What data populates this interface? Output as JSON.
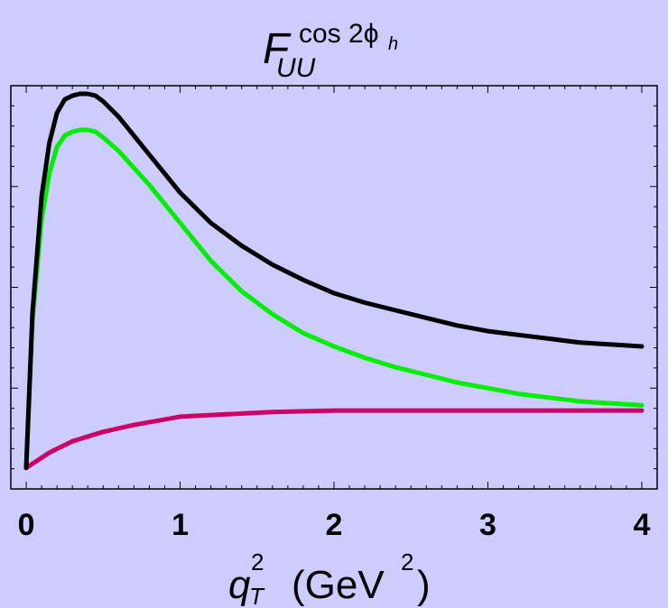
{
  "chart_data": {
    "type": "line",
    "title": {
      "main": "F",
      "superscript": "cos 2ϕ",
      "superscript_sub": "h",
      "subscript": "UU"
    },
    "xlabel": {
      "symbol": "q",
      "symbol_sup": "2",
      "symbol_sub": "T",
      "unit_open": "(GeV",
      "unit_sup": "2",
      "unit_close": ")"
    },
    "ylabel": "",
    "xlim": [
      -0.1,
      4.1
    ],
    "ylim": [
      0,
      1
    ],
    "x_ticks": [
      "0",
      "1",
      "2",
      "3",
      "4"
    ],
    "y_tick_labels": [],
    "grid": false,
    "legend": "none",
    "series": [
      {
        "color": "#000000",
        "x": [
          0,
          0.04,
          0.1,
          0.15,
          0.2,
          0.25,
          0.3,
          0.35,
          0.4,
          0.45,
          0.5,
          0.6,
          0.8,
          1.0,
          1.2,
          1.4,
          1.6,
          1.8,
          2.0,
          2.2,
          2.4,
          2.6,
          2.8,
          3.0,
          3.2,
          3.4,
          3.6,
          3.8,
          4.0
        ],
        "y": [
          0.015,
          0.42,
          0.73,
          0.87,
          0.95,
          0.985,
          0.995,
          1.0,
          1.0,
          0.995,
          0.98,
          0.94,
          0.84,
          0.74,
          0.66,
          0.6,
          0.55,
          0.51,
          0.475,
          0.45,
          0.43,
          0.41,
          0.39,
          0.375,
          0.365,
          0.355,
          0.345,
          0.34,
          0.335
        ]
      },
      {
        "color": "#00ee00",
        "x": [
          0,
          0.04,
          0.1,
          0.15,
          0.2,
          0.25,
          0.3,
          0.35,
          0.4,
          0.45,
          0.5,
          0.6,
          0.8,
          1.0,
          1.2,
          1.4,
          1.6,
          1.8,
          2.0,
          2.2,
          2.4,
          2.6,
          2.8,
          3.0,
          3.2,
          3.4,
          3.6,
          3.8,
          4.0
        ],
        "y": [
          0.015,
          0.4,
          0.67,
          0.79,
          0.86,
          0.89,
          0.9,
          0.905,
          0.905,
          0.9,
          0.885,
          0.85,
          0.76,
          0.66,
          0.56,
          0.48,
          0.42,
          0.37,
          0.335,
          0.305,
          0.28,
          0.26,
          0.24,
          0.225,
          0.21,
          0.2,
          0.19,
          0.185,
          0.18
        ]
      },
      {
        "color": "#cc0066",
        "x": [
          0,
          0.15,
          0.3,
          0.5,
          0.7,
          1.0,
          1.3,
          1.6,
          2.0,
          2.5,
          3.0,
          3.5,
          4.0
        ],
        "y": [
          0.015,
          0.055,
          0.085,
          0.11,
          0.128,
          0.15,
          0.156,
          0.162,
          0.166,
          0.166,
          0.166,
          0.166,
          0.166
        ]
      }
    ]
  }
}
